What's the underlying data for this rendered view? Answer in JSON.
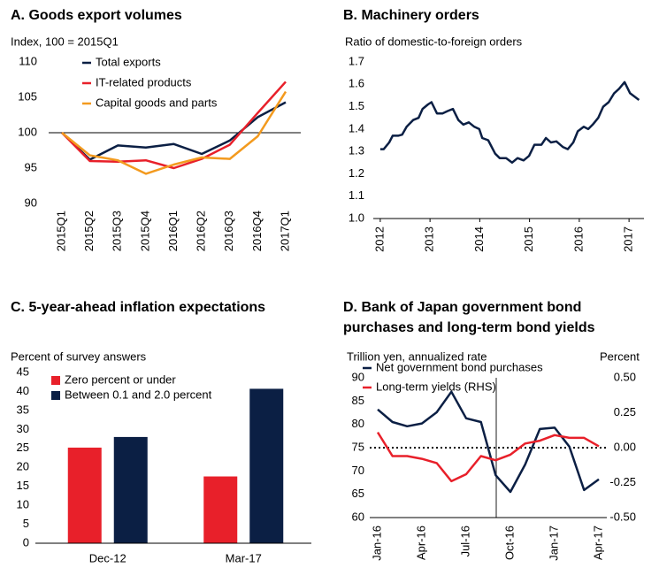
{
  "chart_data": [
    {
      "type": "line",
      "title": "A. Goods export volumes",
      "subtitle": "Index, 100 = 2015Q1",
      "categories": [
        "2015Q1",
        "2015Q2",
        "2015Q3",
        "2015Q4",
        "2016Q1",
        "2016Q2",
        "2016Q3",
        "2016Q4",
        "2017Q1"
      ],
      "series": [
        {
          "name": "Total exports",
          "color": "#0b1f44",
          "values": [
            100,
            96.2,
            98.2,
            97.9,
            98.4,
            97.0,
            98.9,
            102.2,
            104.3
          ]
        },
        {
          "name": "IT-related products",
          "color": "#e8202a",
          "values": [
            100,
            96.0,
            95.9,
            96.1,
            95.0,
            96.3,
            98.3,
            102.8,
            107.2
          ]
        },
        {
          "name": "Capital goods and parts",
          "color": "#f39a1e",
          "values": [
            100,
            96.8,
            96.1,
            94.2,
            95.5,
            96.5,
            96.3,
            99.5,
            105.8
          ]
        }
      ],
      "ylim": [
        90,
        110
      ],
      "yticks": [
        90,
        95,
        100,
        105,
        110
      ],
      "baseline": 100
    },
    {
      "type": "line",
      "title": "B. Machinery orders",
      "subtitle": "Ratio of domestic-to-foreign orders",
      "x": [
        2012.0,
        2012.07,
        2012.18,
        2012.25,
        2012.36,
        2012.44,
        2012.53,
        2012.66,
        2012.77,
        2012.85,
        2012.96,
        2013.03,
        2013.14,
        2013.25,
        2013.35,
        2013.46,
        2013.57,
        2013.67,
        2013.78,
        2013.89,
        2013.99,
        2014.05,
        2014.17,
        2014.31,
        2014.4,
        2014.53,
        2014.65,
        2014.76,
        2014.88,
        2014.99,
        2015.1,
        2015.24,
        2015.33,
        2015.43,
        2015.54,
        2015.67,
        2015.77,
        2015.88,
        2015.97,
        2016.09,
        2016.18,
        2016.27,
        2016.38,
        2016.48,
        2016.59,
        2016.7,
        2016.8,
        2016.91,
        2017.02,
        2017.2
      ],
      "series": [
        {
          "color": "#0b1f44",
          "values": [
            1.31,
            1.31,
            1.34,
            1.37,
            1.37,
            1.375,
            1.41,
            1.44,
            1.45,
            1.49,
            1.51,
            1.52,
            1.47,
            1.47,
            1.48,
            1.49,
            1.44,
            1.42,
            1.43,
            1.41,
            1.4,
            1.36,
            1.35,
            1.29,
            1.27,
            1.27,
            1.25,
            1.27,
            1.26,
            1.28,
            1.33,
            1.33,
            1.36,
            1.34,
            1.345,
            1.32,
            1.31,
            1.34,
            1.39,
            1.41,
            1.4,
            1.42,
            1.45,
            1.5,
            1.52,
            1.56,
            1.58,
            1.61,
            1.56,
            1.53
          ]
        }
      ],
      "xlim": [
        2011.86,
        2017.3
      ],
      "xticks": [
        2012,
        2013,
        2014,
        2015,
        2016,
        2017
      ],
      "ylim": [
        1.0,
        1.7
      ],
      "yticks": [
        {
          "value": 1.0,
          "label": "1.0"
        },
        1.1,
        1.2,
        1.3,
        1.4,
        1.5,
        1.6,
        1.7
      ]
    },
    {
      "type": "bar",
      "title": "C. 5-year-ahead inflation expectations",
      "subtitle": "Percent of survey answers",
      "categories": [
        "Dec-12",
        "Mar-17"
      ],
      "series": [
        {
          "name": "Zero percent or under",
          "color": "#e8202a",
          "values": [
            25.2,
            17.6
          ]
        },
        {
          "name": "Between 0.1 and 2.0 percent",
          "color": "#0b1f44",
          "values": [
            28,
            40.7
          ]
        }
      ],
      "ylim": [
        0,
        45
      ],
      "yticks": [
        0,
        5,
        10,
        15,
        20,
        25,
        30,
        35,
        40,
        45
      ]
    },
    {
      "type": "line",
      "title": [
        "D. Bank of Japan government bond",
        "purchases and long-term bond yields"
      ],
      "subtitle": "Trillion yen, annualized rate",
      "y2label": "Percent",
      "categories": [
        "Jan-16",
        null,
        null,
        "Apr-16",
        null,
        null,
        "Jul-16",
        null,
        null,
        "Oct-16",
        null,
        null,
        "Jan-17",
        null,
        null,
        "Apr-17"
      ],
      "series": [
        {
          "name": "Net government bond purchases",
          "color": "#0b1f44",
          "values": [
            83.2,
            80.5,
            79.6,
            80.2,
            82.6,
            87.0,
            81.3,
            80.5,
            69.1,
            65.5,
            71.4,
            79.0,
            79.3,
            75.2,
            65.9,
            68.2
          ]
        },
        {
          "name": "Long-term yields (RHS)",
          "color": "#e8202a",
          "axis": "y2",
          "values": [
            0.11,
            -0.06,
            -0.06,
            -0.08,
            -0.11,
            -0.24,
            -0.19,
            -0.06,
            -0.09,
            -0.05,
            0.03,
            0.05,
            0.09,
            0.07,
            0.07,
            0.01
          ]
        }
      ],
      "ylim": [
        60,
        90
      ],
      "yticks": [
        60,
        65,
        70,
        75,
        80,
        85,
        90
      ],
      "y2lim": [
        -0.5,
        0.5
      ],
      "y2ticks": [
        {
          "value": -0.5,
          "label": "-0.50"
        },
        {
          "value": -0.25,
          "label": "-0.25"
        },
        {
          "value": 0,
          "label": "0.00"
        },
        {
          "value": 0.25,
          "label": "0.25"
        },
        {
          "value": 0.5,
          "label": "0.50"
        }
      ],
      "y2baseline": 0
    }
  ]
}
